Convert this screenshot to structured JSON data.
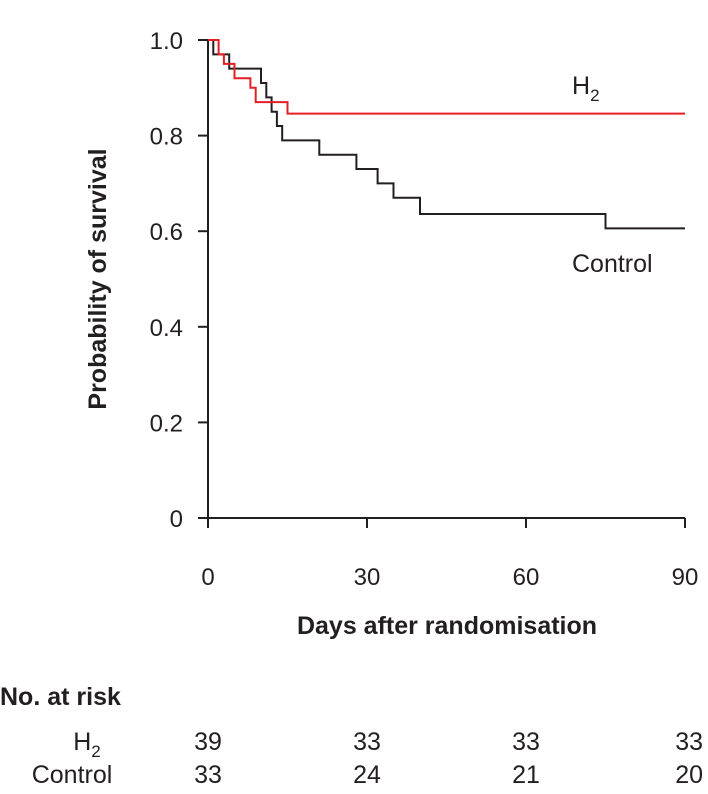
{
  "chart_data": {
    "type": "line",
    "subtype": "kaplan-meier",
    "xlabel": "Days after randomisation",
    "ylabel": "Probability of survival",
    "xlim": [
      0,
      90
    ],
    "ylim": [
      0,
      1
    ],
    "xticks": [
      0,
      30,
      60,
      90
    ],
    "xtick_labels": [
      "0",
      "30",
      "60",
      "90"
    ],
    "yticks": [
      0,
      0.2,
      0.4,
      0.6,
      0.8,
      1.0
    ],
    "ytick_labels": [
      "0",
      "0.2",
      "0.4",
      "0.6",
      "0.8",
      "1.0"
    ],
    "grid": false,
    "series": [
      {
        "name": "H2",
        "label_main": "H",
        "label_sub": "2",
        "color": "#e31e24",
        "steps": [
          [
            0,
            1.0
          ],
          [
            2,
            0.97
          ],
          [
            3,
            0.95
          ],
          [
            5,
            0.92
          ],
          [
            8,
            0.9
          ],
          [
            9,
            0.87
          ],
          [
            15,
            0.846
          ],
          [
            90,
            0.846
          ]
        ]
      },
      {
        "name": "Control",
        "label_main": "Control",
        "color": "#231f20",
        "steps": [
          [
            0,
            1.0
          ],
          [
            1,
            0.97
          ],
          [
            4,
            0.94
          ],
          [
            10,
            0.91
          ],
          [
            11,
            0.88
          ],
          [
            12,
            0.85
          ],
          [
            13,
            0.82
          ],
          [
            14,
            0.79
          ],
          [
            21,
            0.76
          ],
          [
            28,
            0.73
          ],
          [
            32,
            0.7
          ],
          [
            35,
            0.67
          ],
          [
            40,
            0.636
          ],
          [
            75,
            0.606
          ],
          [
            90,
            0.606
          ]
        ]
      }
    ],
    "at_risk": {
      "title": "No. at risk",
      "days": [
        0,
        30,
        60,
        90
      ],
      "rows": [
        {
          "label_main": "H",
          "label_sub": "2",
          "values": [
            "39",
            "33",
            "33",
            "33"
          ]
        },
        {
          "label_main": "Control",
          "label_sub": "",
          "values": [
            "33",
            "24",
            "21",
            "20"
          ]
        }
      ]
    }
  }
}
